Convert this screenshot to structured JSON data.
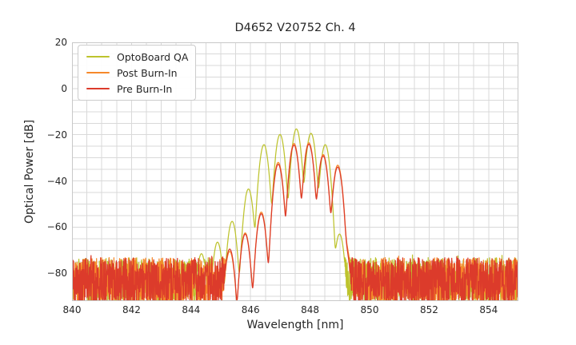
{
  "chart_data": {
    "type": "line",
    "title": "D4652 V20752 Ch. 4",
    "xlabel": "Wavelength [nm]",
    "ylabel": "Optical Power [dB]",
    "xlim": [
      840,
      855
    ],
    "ylim": [
      -92,
      20
    ],
    "xticks": [
      840,
      842,
      844,
      846,
      848,
      850,
      852,
      854
    ],
    "yticks": [
      20,
      0,
      -20,
      -40,
      -60,
      -80
    ],
    "grid": {
      "minor_x_nm": 0.5,
      "minor_y_db": 5,
      "color": "#d9d9d9",
      "frame_color": "#c8c8c8",
      "background": "#ffffff"
    },
    "legend_position": "upper left",
    "noise_floor": {
      "top_db": -73.2,
      "bottom_db": -94,
      "spike_db": 1.6
    },
    "mode_sigma_nm": 0.072,
    "series": [
      {
        "name": "OptoBoard QA",
        "color": "#bdc32d",
        "smooth_window_nm": [
          845.0,
          849.15
        ],
        "modes": [
          [
            844.35,
            -71.5
          ],
          [
            844.89,
            -66.5
          ],
          [
            845.38,
            -57.5
          ],
          [
            845.93,
            -43.5
          ],
          [
            846.45,
            -24.3
          ],
          [
            846.99,
            -19.9
          ],
          [
            847.54,
            -17.5
          ],
          [
            848.03,
            -19.4
          ],
          [
            848.51,
            -24.3
          ],
          [
            848.99,
            -63.0
          ]
        ]
      },
      {
        "name": "Post Burn-In",
        "color": "#f6882a",
        "smooth_window_nm": [
          845.35,
          849.3
        ],
        "modes": [
          [
            845.3,
            -70.5
          ],
          [
            845.82,
            -62.5
          ],
          [
            846.36,
            -53.5
          ],
          [
            846.93,
            -32.0
          ],
          [
            847.46,
            -23.8
          ],
          [
            847.96,
            -23.5
          ],
          [
            848.44,
            -28.6
          ],
          [
            848.93,
            -33.2
          ],
          [
            849.2,
            -68.0
          ]
        ]
      },
      {
        "name": "Pre Burn-In",
        "color": "#dc3b2b",
        "smooth_window_nm": [
          845.35,
          849.28
        ],
        "modes": [
          [
            845.3,
            -69.5
          ],
          [
            845.82,
            -63.0
          ],
          [
            846.36,
            -54.2
          ],
          [
            846.93,
            -32.8
          ],
          [
            847.46,
            -24.5
          ],
          [
            847.96,
            -24.1
          ],
          [
            848.44,
            -29.2
          ],
          [
            848.93,
            -34.0
          ],
          [
            849.18,
            -68.5
          ]
        ]
      }
    ]
  }
}
